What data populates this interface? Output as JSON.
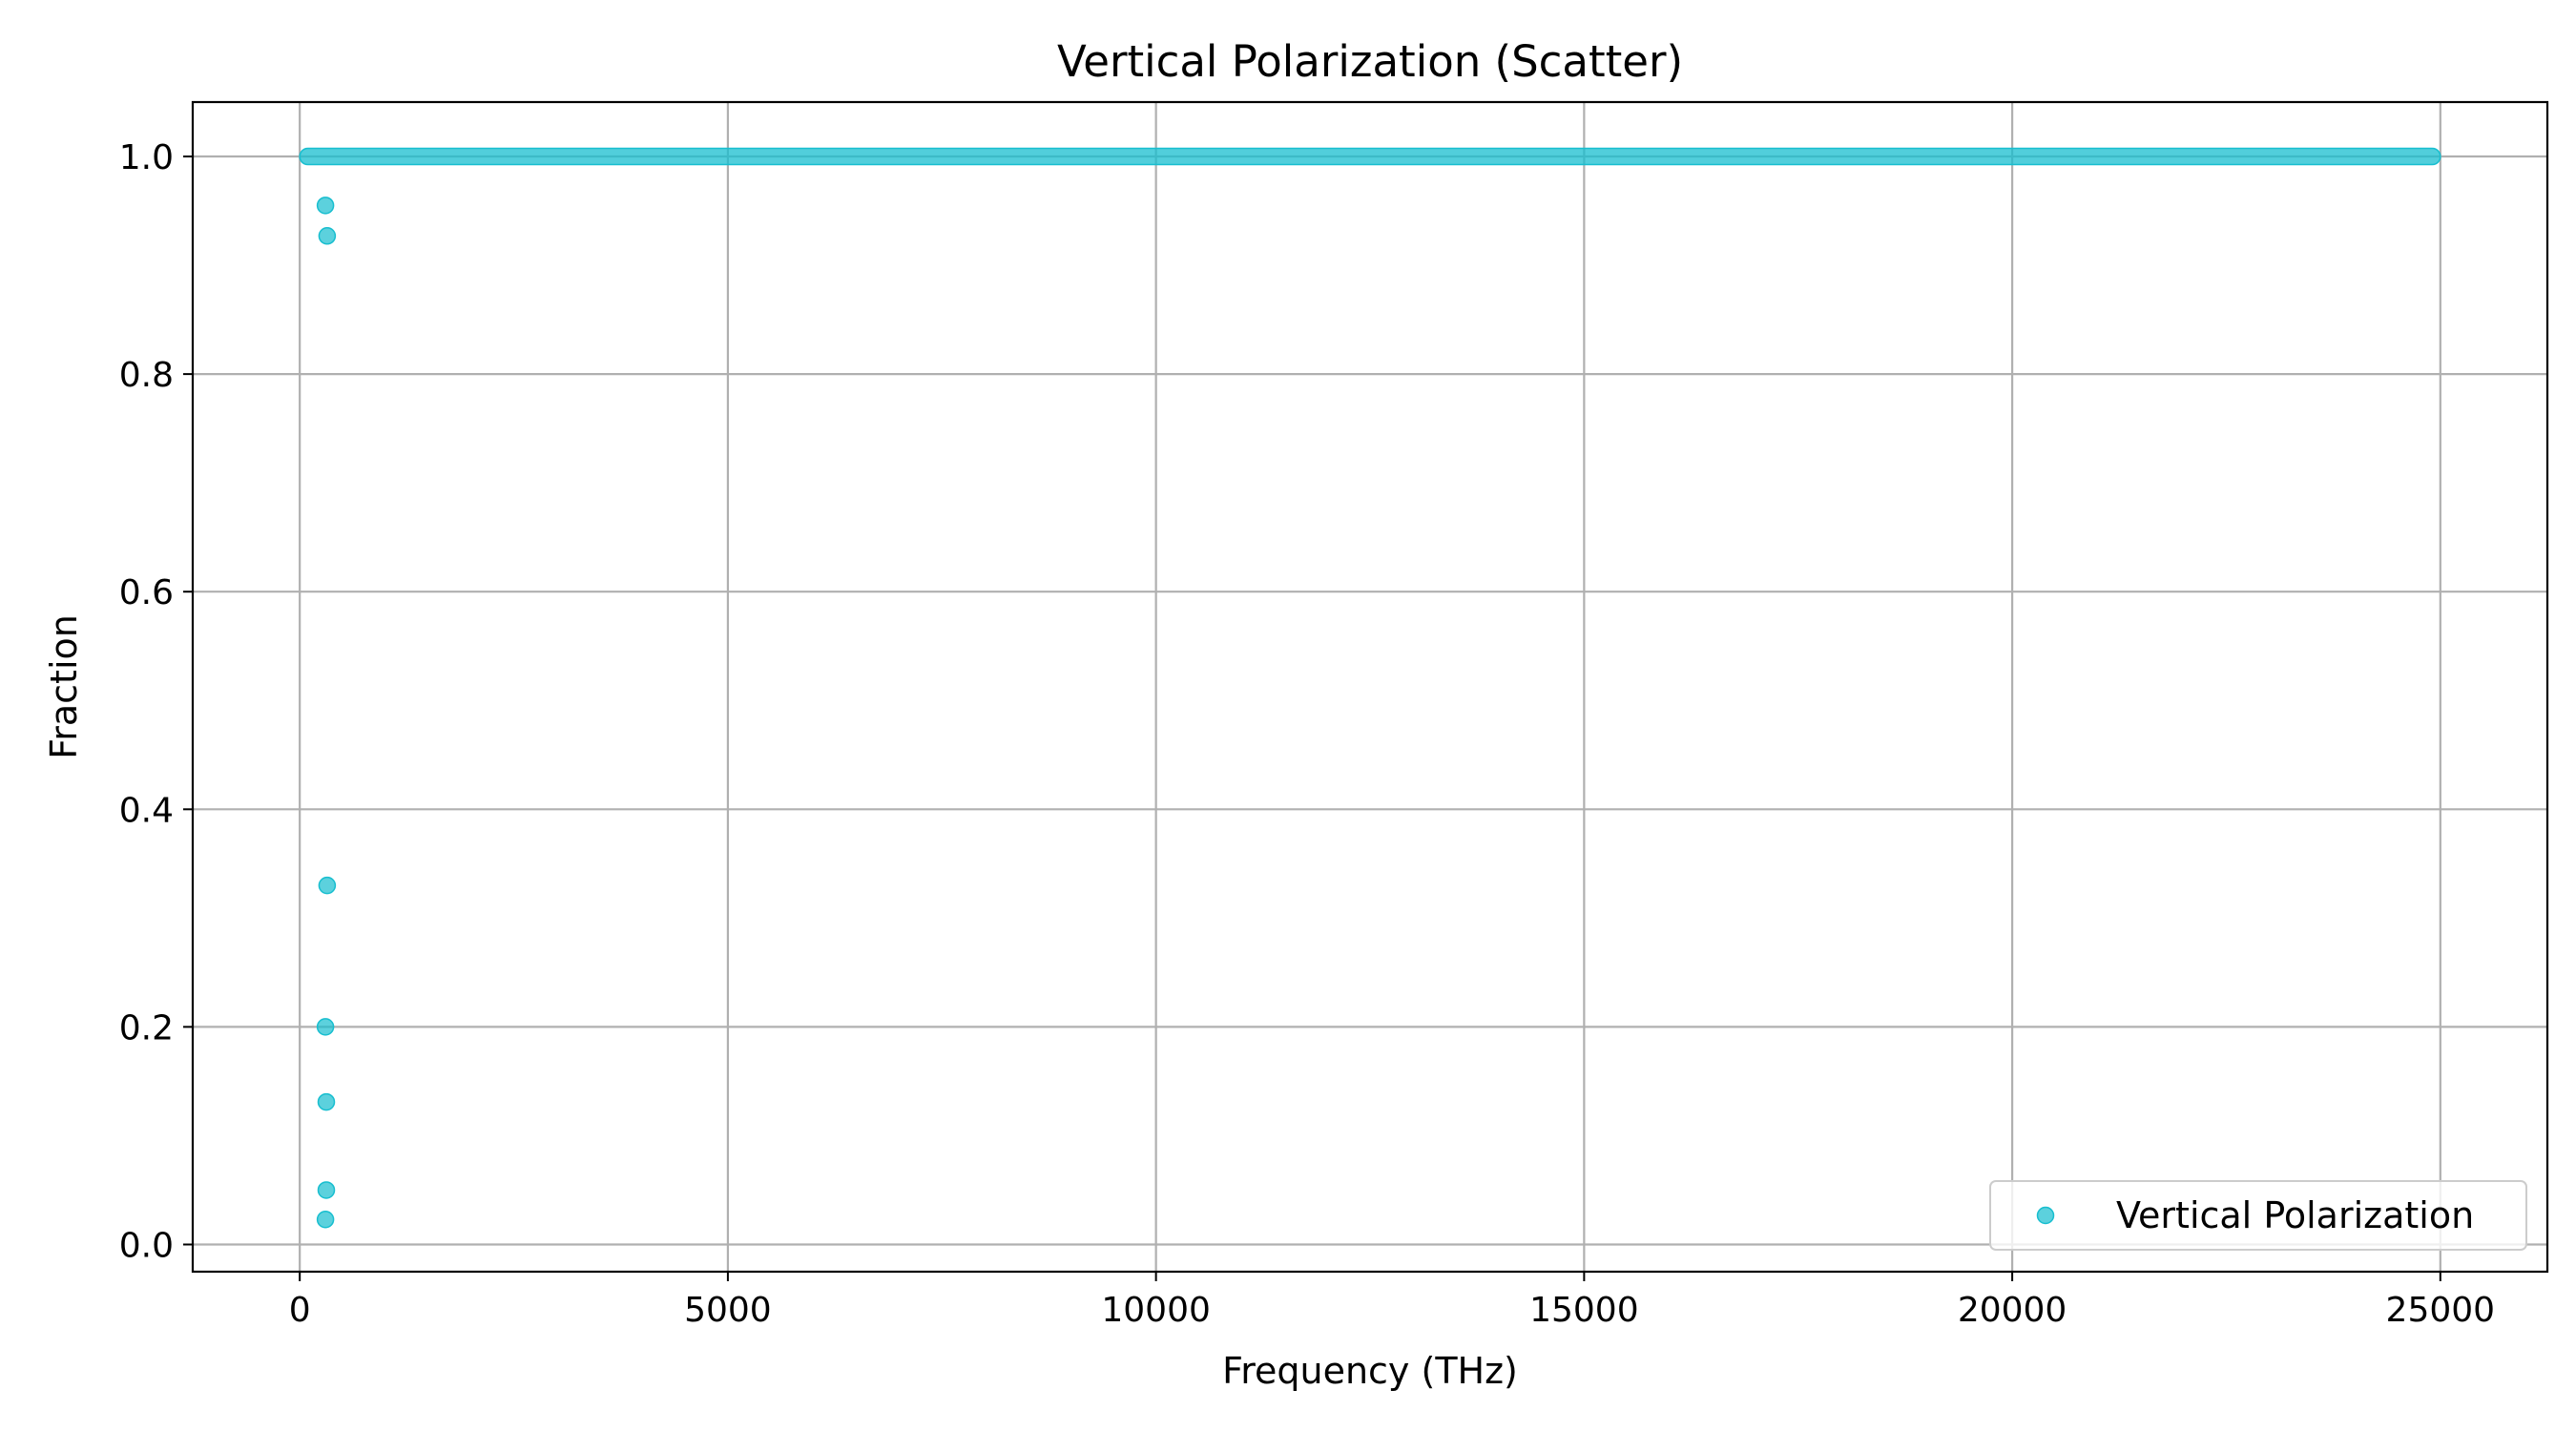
{
  "chart_data": {
    "type": "scatter",
    "title": "Vertical Polarization (Scatter)",
    "xlabel": "Frequency (THz)",
    "ylabel": "Fraction",
    "xlim": [
      -1250,
      26250
    ],
    "ylim": [
      -0.025,
      1.05
    ],
    "xticks": [
      0,
      5000,
      10000,
      15000,
      20000,
      25000
    ],
    "yticks": [
      0.0,
      0.2,
      0.4,
      0.6,
      0.8,
      1.0
    ],
    "xtick_labels": [
      "0",
      "5000",
      "10000",
      "15000",
      "20000",
      "25000"
    ],
    "ytick_labels": [
      "0.0",
      "0.2",
      "0.4",
      "0.6",
      "0.8",
      "1.0"
    ],
    "grid": true,
    "legend_position": "lower-right",
    "series": [
      {
        "name": "Vertical Polarization",
        "color": "#17becf",
        "band": {
          "x_start": 0,
          "x_end": 25000,
          "y": 1.0
        },
        "outliers": [
          {
            "x": 300,
            "y": 0.955
          },
          {
            "x": 320,
            "y": 0.927
          },
          {
            "x": 320,
            "y": 0.33
          },
          {
            "x": 300,
            "y": 0.2
          },
          {
            "x": 310,
            "y": 0.131
          },
          {
            "x": 310,
            "y": 0.05
          },
          {
            "x": 300,
            "y": 0.023
          }
        ]
      }
    ]
  }
}
